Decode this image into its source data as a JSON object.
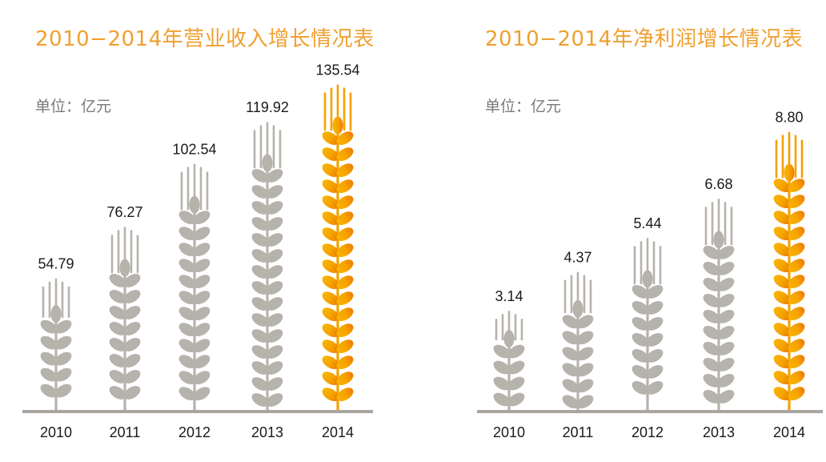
{
  "colors": {
    "title": "#f0a030",
    "grain_gray": "#b6b2ac",
    "grain_highlight": "#f5a000",
    "baseline": "#a9a6a1"
  },
  "chart_data": [
    {
      "type": "bar",
      "title": "2010−2014年营业收入增长情况表",
      "unit": "单位：亿元",
      "categories": [
        "2010",
        "2011",
        "2012",
        "2013",
        "2014"
      ],
      "values": [
        54.79,
        76.27,
        102.54,
        119.92,
        135.54
      ],
      "value_labels": [
        "54.79",
        "76.27",
        "102.54",
        "119.92",
        "135.54"
      ],
      "highlight_index": 4,
      "mark_style": "wheat-ear"
    },
    {
      "type": "bar",
      "title": "2010−2014年净利润增长情况表",
      "unit": "单位：亿元",
      "categories": [
        "2010",
        "2011",
        "2012",
        "2013",
        "2014"
      ],
      "values": [
        3.14,
        4.37,
        5.44,
        6.68,
        8.8
      ],
      "value_labels": [
        "3.14",
        "4.37",
        "5.44",
        "6.68",
        "8.80"
      ],
      "highlight_index": 4,
      "mark_style": "wheat-ear"
    }
  ]
}
